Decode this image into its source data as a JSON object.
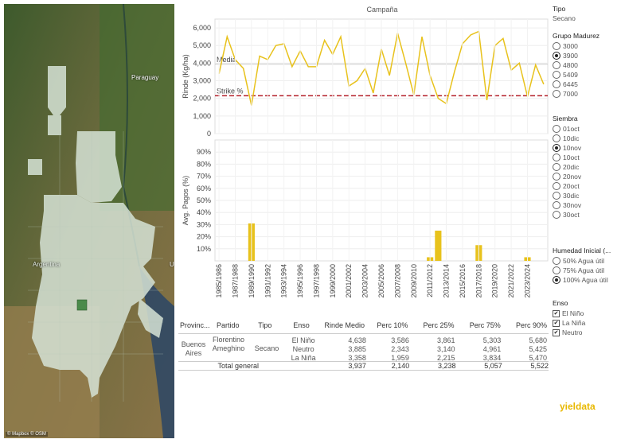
{
  "map": {
    "label_paraguay": "Paraguay",
    "label_argentina": "Argentina",
    "label_u": "U",
    "credit": "© Mapbox © OSM"
  },
  "chart_title": "Campaña",
  "chart_data": [
    {
      "type": "line",
      "ylabel": "Rinde (Kg/ha)",
      "ylim": [
        0,
        6500
      ],
      "yticks": [
        "0",
        "1,000",
        "2,000",
        "3,000",
        "4,000",
        "5,000",
        "6,000"
      ],
      "reference_lines": [
        {
          "label": "Media",
          "value": 3937,
          "style": "solid",
          "color": "#bbbbbb"
        },
        {
          "label": "Strike %",
          "value": 2150,
          "style": "dashed",
          "color": "#b3202a"
        }
      ],
      "series": [
        {
          "color": "#e8c21c",
          "values": [
            3400,
            5500,
            4200,
            3700,
            1600,
            4400,
            4200,
            5000,
            5100,
            3800,
            4700,
            3800,
            3800,
            5300,
            4500,
            5500,
            2700,
            3000,
            3700,
            2300,
            4800,
            3300,
            5700,
            4000,
            2200,
            5500,
            3300,
            2000,
            1700,
            3500,
            5100,
            5600,
            5800,
            1900,
            5000,
            5400,
            3600,
            4000,
            2100,
            3900,
            2800
          ]
        }
      ],
      "grid": true
    },
    {
      "type": "bar",
      "ylabel": "Avg. Pagos (%)",
      "ylim": [
        0,
        100
      ],
      "yticks": [
        "10%",
        "20%",
        "30%",
        "40%",
        "50%",
        "60%",
        "70%",
        "80%",
        "90%"
      ],
      "series": [
        {
          "color": "#e8c21c",
          "values": [
            0,
            0,
            0,
            0,
            31,
            0,
            0,
            0,
            0,
            0,
            0,
            0,
            0,
            0,
            0,
            0,
            0,
            0,
            0,
            0,
            0,
            0,
            0,
            0,
            0,
            0,
            3,
            25,
            0,
            0,
            0,
            0,
            13,
            0,
            0,
            0,
            0,
            0,
            3,
            0,
            0
          ]
        }
      ],
      "categories": [
        "1985/1986",
        "1986/1987",
        "1987/1988",
        "1988/1989",
        "1989/1990",
        "1990/1991",
        "1991/1992",
        "1992/1993",
        "1993/1994",
        "1994/1995",
        "1995/1996",
        "1996/1997",
        "1997/1998",
        "1998/1999",
        "1999/2000",
        "2000/2001",
        "2001/2002",
        "2002/2003",
        "2003/2004",
        "2004/2005",
        "2005/2006",
        "2006/2007",
        "2007/2008",
        "2008/2009",
        "2009/2010",
        "2010/2011",
        "2011/2012",
        "2012/2013",
        "2013/2014",
        "2014/2015",
        "2015/2016",
        "2016/2017",
        "2017/2018",
        "2018/2019",
        "2019/2020",
        "2020/2021",
        "2021/2022",
        "2022/2023",
        "2023/2024",
        "2024/2025",
        "2025/2026"
      ],
      "xtick_labels": [
        "1985/1986",
        "1987/1988",
        "1989/1990",
        "1991/1992",
        "1993/1994",
        "1995/1996",
        "1997/1998",
        "1999/2000",
        "2001/2002",
        "2003/2004",
        "2005/2006",
        "2007/2008",
        "2009/2010",
        "2011/2012",
        "2013/2014",
        "2015/2016",
        "2017/2018",
        "2019/2020",
        "2021/2022",
        "2023/2024"
      ]
    }
  ],
  "table": {
    "headers": {
      "prov": "Provinc...",
      "partido": "Partido",
      "tipo": "Tipo",
      "enso": "Enso",
      "rinde": "Rinde Medio",
      "p10": "Perc 10%",
      "p25": "Perc 25%",
      "p75": "Perc 75%",
      "p90": "Perc 90%"
    },
    "prov_value": "Buenos Aires",
    "partido_value": "Florentino Ameghino",
    "tipo_value": "Secano",
    "rows": [
      {
        "enso": "El Niño",
        "rinde": "4,638",
        "p10": "3,586",
        "p25": "3,861",
        "p75": "5,303",
        "p90": "5,680"
      },
      {
        "enso": "Neutro",
        "rinde": "3,885",
        "p10": "2,343",
        "p25": "3,140",
        "p75": "4,961",
        "p90": "5,425"
      },
      {
        "enso": "La Niña",
        "rinde": "3,358",
        "p10": "1,959",
        "p25": "2,215",
        "p75": "3,834",
        "p90": "5,470"
      }
    ],
    "total": {
      "label": "Total general",
      "rinde": "3,937",
      "p10": "2,140",
      "p25": "3,238",
      "p75": "5,057",
      "p90": "5,522"
    }
  },
  "side": {
    "tipo_title": "Tipo",
    "tipo_value": "Secano",
    "grupo_title": "Grupo Madurez",
    "grupo_options": [
      {
        "label": "3000",
        "selected": false
      },
      {
        "label": "3900",
        "selected": true
      },
      {
        "label": "4800",
        "selected": false
      },
      {
        "label": "5409",
        "selected": false
      },
      {
        "label": "6445",
        "selected": false
      },
      {
        "label": "7000",
        "selected": false
      }
    ],
    "siembra_title": "Siembra",
    "siembra_options": [
      {
        "label": "01oct",
        "selected": false
      },
      {
        "label": "10dic",
        "selected": false
      },
      {
        "label": "10nov",
        "selected": true
      },
      {
        "label": "10oct",
        "selected": false
      },
      {
        "label": "20dic",
        "selected": false
      },
      {
        "label": "20nov",
        "selected": false
      },
      {
        "label": "20oct",
        "selected": false
      },
      {
        "label": "30dic",
        "selected": false
      },
      {
        "label": "30nov",
        "selected": false
      },
      {
        "label": "30oct",
        "selected": false
      }
    ],
    "humedad_title": "Humedad Inicial (...",
    "humedad_options": [
      {
        "label": "50% Agua útil",
        "selected": false
      },
      {
        "label": "75% Agua útil",
        "selected": false
      },
      {
        "label": "100% Agua útil",
        "selected": true
      }
    ],
    "enso_title": "Enso",
    "enso_options": [
      {
        "label": "El Niño",
        "checked": true
      },
      {
        "label": "La Niña",
        "checked": true
      },
      {
        "label": "Neutro",
        "checked": true
      }
    ]
  },
  "logo": "yieldata"
}
